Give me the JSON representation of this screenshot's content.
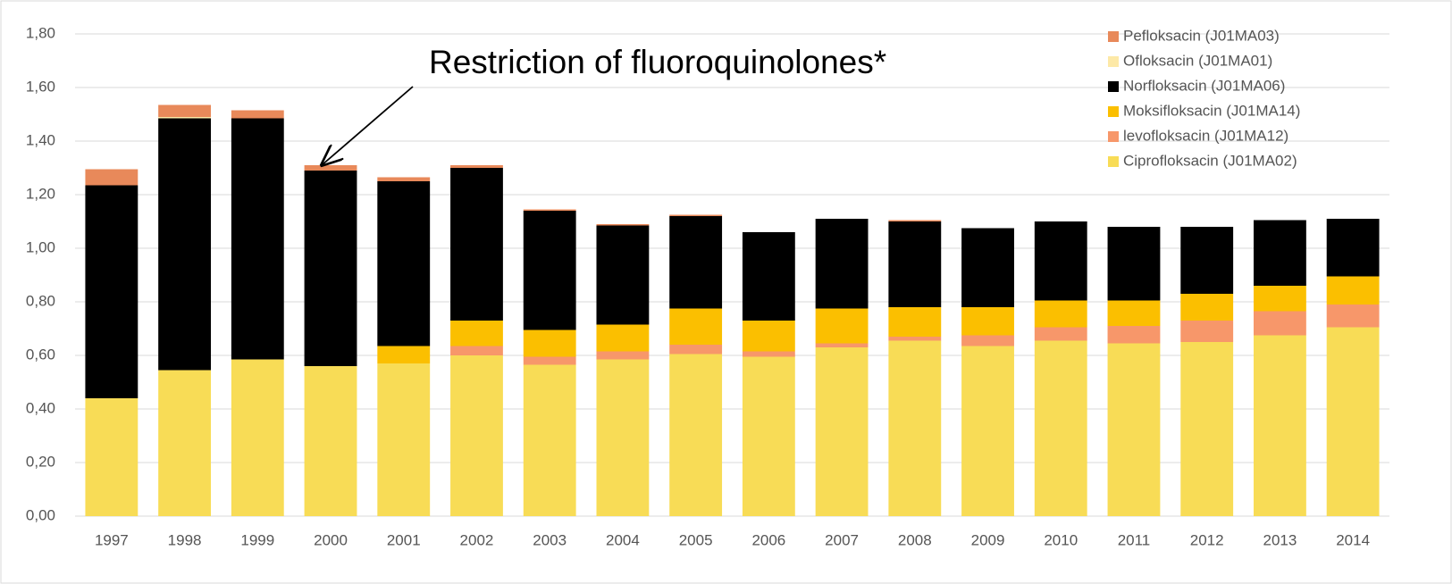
{
  "chart_data": {
    "type": "stacked_bar",
    "annotation": "Restriction of fluoroquinolones*",
    "categories": [
      "1997",
      "1998",
      "1999",
      "2000",
      "2001",
      "2002",
      "2003",
      "2004",
      "2005",
      "2006",
      "2007",
      "2008",
      "2009",
      "2010",
      "2011",
      "2012",
      "2013",
      "2014"
    ],
    "series": [
      {
        "name": "Ciprofloksacin (J01MA02)",
        "color": "#f8dc56",
        "values": [
          0.44,
          0.545,
          0.585,
          0.56,
          0.57,
          0.6,
          0.565,
          0.585,
          0.605,
          0.595,
          0.63,
          0.655,
          0.635,
          0.655,
          0.645,
          0.65,
          0.675,
          0.705
        ]
      },
      {
        "name": "levofloksacin (J01MA12)",
        "color": "#f7976a",
        "values": [
          0,
          0,
          0,
          0,
          0,
          0.035,
          0.03,
          0.03,
          0.035,
          0.02,
          0.015,
          0.015,
          0.04,
          0.05,
          0.065,
          0.08,
          0.09,
          0.085
        ]
      },
      {
        "name": "Moksifloksacin (J01MA14)",
        "color": "#fbbf00",
        "values": [
          0,
          0,
          0,
          0,
          0.065,
          0.095,
          0.1,
          0.1,
          0.135,
          0.115,
          0.13,
          0.11,
          0.105,
          0.1,
          0.095,
          0.1,
          0.095,
          0.105
        ]
      },
      {
        "name": "Norfloksacin (J01MA06)",
        "color": "#000000",
        "values": [
          0.795,
          0.94,
          0.9,
          0.73,
          0.615,
          0.57,
          0.445,
          0.37,
          0.345,
          0.33,
          0.335,
          0.32,
          0.295,
          0.295,
          0.275,
          0.25,
          0.245,
          0.215
        ]
      },
      {
        "name": "Ofloksacin (J01MA01)",
        "color": "#fde9a7",
        "values": [
          0,
          0.005,
          0,
          0,
          0,
          0,
          0,
          0,
          0,
          0,
          0,
          0,
          0,
          0,
          0,
          0,
          0,
          0
        ]
      },
      {
        "name": "Pefloksacin (J01MA03)",
        "color": "#e8895a",
        "values": [
          0.06,
          0.045,
          0.03,
          0.02,
          0.015,
          0.01,
          0.005,
          0.005,
          0.005,
          0,
          0,
          0.005,
          0,
          0,
          0,
          0,
          0,
          0
        ]
      }
    ],
    "ylim": [
      0,
      1.8
    ],
    "yticks": [
      {
        "value": 0,
        "label": "0,00"
      },
      {
        "value": 0.2,
        "label": "0,20"
      },
      {
        "value": 0.4,
        "label": "0,40"
      },
      {
        "value": 0.6,
        "label": "0,60"
      },
      {
        "value": 0.8,
        "label": "0,80"
      },
      {
        "value": 1.0,
        "label": "1,00"
      },
      {
        "value": 1.2,
        "label": "1,20"
      },
      {
        "value": 1.4,
        "label": "1,40"
      },
      {
        "value": 1.6,
        "label": "1,60"
      },
      {
        "value": 1.8,
        "label": "1,80"
      }
    ],
    "grid": true,
    "legend": "upper right"
  }
}
